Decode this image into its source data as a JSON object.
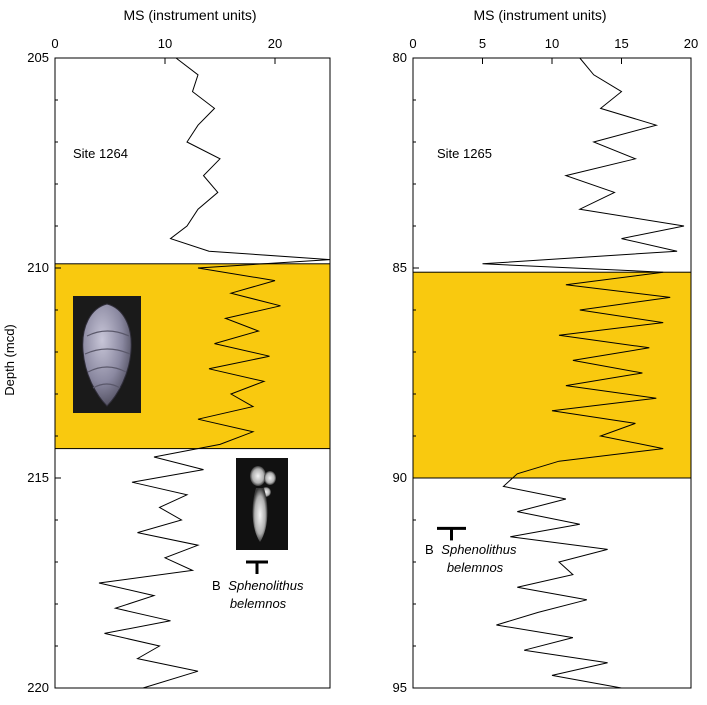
{
  "chart_data": [
    {
      "type": "line",
      "panel": "left",
      "xlabel": "MS (instrument units)",
      "ylabel": "Depth (mcd)",
      "xlim": [
        0,
        25
      ],
      "ylim": [
        205,
        220
      ],
      "y_inverted": true,
      "xticks": [
        0,
        10,
        20
      ],
      "yticks": [
        205,
        210,
        215,
        220
      ],
      "site_label": "Site 1264",
      "highlight": {
        "from": 209.9,
        "to": 214.3,
        "color": "#F9C90F"
      },
      "datum": {
        "depth": 217.0,
        "marker": "B",
        "species": "Sphenolithus",
        "species2": "belemnos"
      },
      "series": [
        {
          "y": [
            205.0,
            205.4,
            205.8,
            206.2,
            206.6,
            207.0,
            207.4,
            207.8,
            208.2,
            208.6,
            209.0,
            209.3,
            209.6,
            209.8,
            210.0,
            210.3,
            210.6,
            210.9,
            211.2,
            211.5,
            211.8,
            212.1,
            212.4,
            212.7,
            213.0,
            213.3,
            213.6,
            213.9,
            214.2,
            214.5,
            214.8,
            215.1,
            215.4,
            215.7,
            216.0,
            216.3,
            216.6,
            216.9,
            217.2,
            217.5,
            217.8,
            218.1,
            218.4,
            218.7,
            219.0,
            219.3,
            219.6,
            220.0
          ],
          "x": [
            11.0,
            13.0,
            12.5,
            14.5,
            13.0,
            12.0,
            15.0,
            13.5,
            14.8,
            13.0,
            12.0,
            10.5,
            14.0,
            25.0,
            13.0,
            20.0,
            16.0,
            20.5,
            15.5,
            18.5,
            14.5,
            19.5,
            14.0,
            19.0,
            16.0,
            18.0,
            13.0,
            18.0,
            15.0,
            9.0,
            13.5,
            7.0,
            12.0,
            9.5,
            11.5,
            7.5,
            13.0,
            10.0,
            12.5,
            4.0,
            9.0,
            5.5,
            10.5,
            4.5,
            9.5,
            7.5,
            13.0,
            8.0
          ]
        }
      ]
    },
    {
      "type": "line",
      "panel": "right",
      "xlabel": "MS (instrument units)",
      "ylabel": "",
      "xlim": [
        0,
        20
      ],
      "ylim": [
        80,
        95
      ],
      "y_inverted": true,
      "xticks": [
        0,
        5,
        10,
        15,
        20
      ],
      "yticks": [
        80,
        85,
        90,
        95
      ],
      "site_label": "Site 1265",
      "highlight": {
        "from": 85.1,
        "to": 90.0,
        "color": "#F9C90F"
      },
      "datum": {
        "depth": 91.2,
        "marker": "B",
        "species": "Sphenolithus",
        "species2": "belemnos"
      },
      "series": [
        {
          "y": [
            80.0,
            80.4,
            80.8,
            81.2,
            81.6,
            82.0,
            82.4,
            82.8,
            83.2,
            83.6,
            84.0,
            84.3,
            84.6,
            84.9,
            85.1,
            85.4,
            85.7,
            86.0,
            86.3,
            86.6,
            86.9,
            87.2,
            87.5,
            87.8,
            88.1,
            88.4,
            88.7,
            89.0,
            89.3,
            89.6,
            89.9,
            90.2,
            90.5,
            90.8,
            91.1,
            91.4,
            91.7,
            92.0,
            92.3,
            92.6,
            92.9,
            93.2,
            93.5,
            93.8,
            94.1,
            94.4,
            94.7,
            95.0
          ],
          "x": [
            12.0,
            13.0,
            15.0,
            13.5,
            17.5,
            13.0,
            16.0,
            11.0,
            14.5,
            12.0,
            19.5,
            15.0,
            19.0,
            5.0,
            18.0,
            11.0,
            18.5,
            12.0,
            18.0,
            10.5,
            17.0,
            11.5,
            16.5,
            11.0,
            17.5,
            10.0,
            16.0,
            13.5,
            18.0,
            10.5,
            7.5,
            6.5,
            11.0,
            7.5,
            12.0,
            7.0,
            14.0,
            10.5,
            11.5,
            7.5,
            12.5,
            9.0,
            6.0,
            11.5,
            8.0,
            14.0,
            10.0,
            15.0
          ]
        }
      ]
    }
  ]
}
